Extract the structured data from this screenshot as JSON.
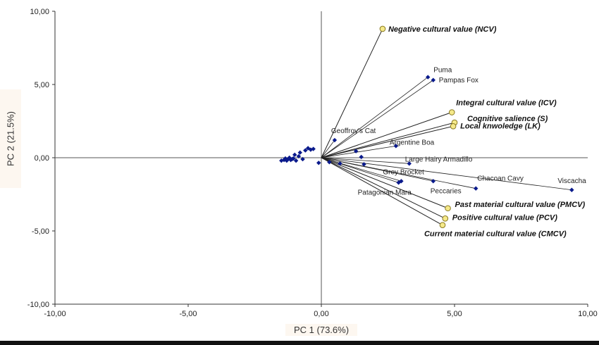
{
  "chart_data": {
    "type": "scatter",
    "xlabel": "PC 1 (73.6%)",
    "ylabel": "PC 2 (21.5%)",
    "xlim": [
      -10,
      10
    ],
    "ylim": [
      -10,
      10
    ],
    "x_ticks": [
      "-10,00",
      "-5,00",
      "0,00",
      "5,00",
      "10,00"
    ],
    "y_ticks": [
      "10,00",
      "5,00",
      "0,00",
      "-5,00",
      "-10,00"
    ],
    "grid": false,
    "colors": {
      "points": "#0a1a8c",
      "vectors": "#f5e98a",
      "vector_edge": "#8a7a20",
      "lines": "#222222"
    },
    "series": [
      {
        "points": [
          {
            "x": 0.5,
            "y": 1.2,
            "label": "Geoffroy's Cat"
          },
          {
            "x": 2.8,
            "y": 0.8,
            "label": "Argentine Boa"
          },
          {
            "x": 3.3,
            "y": -0.4,
            "label": "Large Hairy Armadillo"
          },
          {
            "x": 4.0,
            "y": 5.5,
            "label": "Puma"
          },
          {
            "x": 4.2,
            "y": 5.3,
            "label": "Pampas Fox"
          },
          {
            "x": 3.0,
            "y": -1.6,
            "label": "Grey Brocket"
          },
          {
            "x": 2.9,
            "y": -1.7,
            "label": "Patagonian Mara"
          },
          {
            "x": 4.2,
            "y": -1.6,
            "label": "Peccaries"
          },
          {
            "x": 5.8,
            "y": -2.1,
            "label": "Chacoan Cavy"
          },
          {
            "x": 9.4,
            "y": -2.2,
            "label": "Viscacha"
          },
          {
            "x": -1.5,
            "y": -0.2
          },
          {
            "x": -1.4,
            "y": -0.15
          },
          {
            "x": -1.35,
            "y": -0.05
          },
          {
            "x": -1.3,
            "y": -0.2
          },
          {
            "x": -1.25,
            "y": -0.1
          },
          {
            "x": -1.2,
            "y": 0.0
          },
          {
            "x": -1.15,
            "y": -0.15
          },
          {
            "x": -1.1,
            "y": -0.1
          },
          {
            "x": -1.05,
            "y": -0.05
          },
          {
            "x": -1.0,
            "y": 0.2
          },
          {
            "x": -0.95,
            "y": -0.2
          },
          {
            "x": -0.85,
            "y": 0.1
          },
          {
            "x": -0.8,
            "y": 0.35
          },
          {
            "x": -0.7,
            "y": -0.1
          },
          {
            "x": -0.6,
            "y": 0.5
          },
          {
            "x": -0.5,
            "y": 0.65
          },
          {
            "x": -0.4,
            "y": 0.55
          },
          {
            "x": -0.3,
            "y": 0.6
          },
          {
            "x": -0.1,
            "y": -0.35
          },
          {
            "x": 0.3,
            "y": -0.3
          },
          {
            "x": 0.7,
            "y": -0.4
          },
          {
            "x": 1.3,
            "y": 0.45
          },
          {
            "x": 1.5,
            "y": 0.05
          },
          {
            "x": 1.6,
            "y": -0.45
          }
        ]
      }
    ],
    "vectors": [
      {
        "label": "Negative cultural value (NCV)",
        "x": 2.3,
        "y": 8.8
      },
      {
        "label": "Integral cultural value (ICV)",
        "x": 4.9,
        "y": 3.1
      },
      {
        "label": "Cognitive salience (S)",
        "x": 5.0,
        "y": 2.4
      },
      {
        "label": "Local knwoledge (LK)",
        "x": 4.95,
        "y": 2.15
      },
      {
        "label": "Past material cultural value (PMCV)",
        "x": 4.75,
        "y": -3.45
      },
      {
        "label": "Positive cultural value (PCV)",
        "x": 4.65,
        "y": -4.15
      },
      {
        "label": "Current material cultural value (CMCV)",
        "x": 4.55,
        "y": -4.6
      }
    ]
  }
}
